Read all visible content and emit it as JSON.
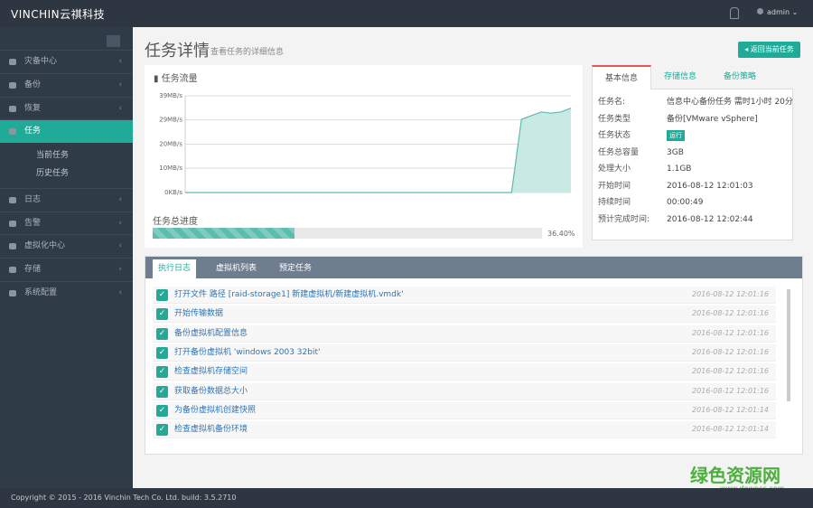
{
  "header": {
    "logo": "VINCHIN云祺科技",
    "user": "admin"
  },
  "sidebar": {
    "items": [
      "灾备中心",
      "备份",
      "恢复",
      "任务",
      "日志",
      "告警",
      "虚拟化中心",
      "存储",
      "系统配置"
    ],
    "subitems": [
      "当前任务",
      "历史任务"
    ]
  },
  "page": {
    "title": "任务详情",
    "subtitle": "查看任务的详细信息",
    "back_button": "返回当前任务"
  },
  "chart_data": {
    "type": "area",
    "title": "任务流量",
    "color": "#5cbcae",
    "values": [
      0,
      0,
      0,
      0,
      0,
      0,
      0,
      0,
      0,
      0,
      0,
      0,
      0,
      0,
      0,
      0,
      0,
      0,
      0,
      0,
      0,
      0,
      0,
      0,
      0,
      0,
      0,
      0,
      0,
      0,
      0,
      0,
      0,
      0,
      29.5,
      31,
      32.5,
      32,
      32.5,
      34
    ],
    "ylim": [
      0,
      39
    ],
    "yticks": [
      {
        "value": 0,
        "label": "0KB/s"
      },
      {
        "value": 9.8,
        "label": "10MB/s"
      },
      {
        "value": 19.5,
        "label": "20MB/s"
      },
      {
        "value": 29.3,
        "label": "29MB/s"
      },
      {
        "value": 39,
        "label": "39MB/s"
      }
    ],
    "grid": true
  },
  "progress": {
    "label": "任务总进度",
    "value": 36.4,
    "value_label": "36.40%"
  },
  "info": {
    "tabs": [
      "基本信息",
      "存储信息",
      "备份策略"
    ],
    "rows": [
      [
        "任务名:",
        "信息中心备份任务 需时1小时 20分"
      ],
      [
        "任务类型",
        "备份[VMware vSphere]"
      ],
      [
        "任务状态",
        "运行"
      ],
      [
        "任务总容量",
        "3GB"
      ],
      [
        "处理大小",
        "1.1GB"
      ],
      [
        "开始时间",
        "2016-08-12 12:01:03"
      ],
      [
        "持续时间",
        "00:00:49"
      ],
      [
        "预计完成时间:",
        "2016-08-12 12:02:44"
      ]
    ]
  },
  "log": {
    "tabs": [
      "执行日志",
      "虚拟机列表",
      "预定任务"
    ],
    "rows": [
      [
        "打开文件 路径 [raid-storage1] 新建虚拟机/新建虚拟机.vmdk'",
        "2016-08-12 12:01:16"
      ],
      [
        "开始传输数据",
        "2016-08-12 12:01:16"
      ],
      [
        "备份虚拟机配置信息",
        "2016-08-12 12:01:16"
      ],
      [
        "打开备份虚拟机 'windows 2003 32bit'",
        "2016-08-12 12:01:16"
      ],
      [
        "检查虚拟机存储空间",
        "2016-08-12 12:01:16"
      ],
      [
        "获取备份数据总大小",
        "2016-08-12 12:01:16"
      ],
      [
        "为备份虚拟机创建快照",
        "2016-08-12 12:01:14"
      ],
      [
        "检查虚拟机备份环境",
        "2016-08-12 12:01:14"
      ]
    ]
  },
  "footer": {
    "copyright": "Copyright © 2015 - 2016 Vinchin Tech Co. Ltd. build: 3.5.2710"
  },
  "watermark": {
    "title": "绿色资源网",
    "url": "www.downcc.com"
  }
}
